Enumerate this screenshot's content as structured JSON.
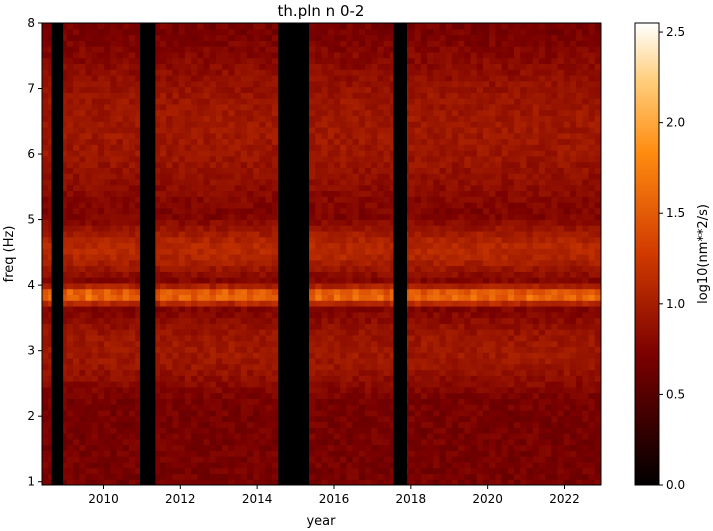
{
  "chart_data": {
    "type": "heatmap",
    "title": "th.pln n 0-2",
    "xlabel": "year",
    "ylabel": "freq (Hz)",
    "colorbar_label": "log10(nm**2/s)",
    "colormap": "gist_heat",
    "xlim": [
      2008.4,
      2022.95
    ],
    "ylim": [
      0.95,
      8.0
    ],
    "x_ticks": [
      2010,
      2012,
      2014,
      2016,
      2018,
      2020,
      2022
    ],
    "y_ticks": [
      1,
      2,
      3,
      4,
      5,
      6,
      7,
      8
    ],
    "clim": [
      0.0,
      2.55
    ],
    "colorbar_ticks": [
      0.0,
      0.5,
      1.0,
      1.5,
      2.0,
      2.5
    ],
    "data_gaps_years": [
      [
        2008.65,
        2008.95
      ],
      [
        2010.95,
        2011.35
      ],
      [
        2014.55,
        2015.35
      ],
      [
        2017.55,
        2017.9
      ]
    ],
    "frequency_bands": [
      {
        "freq_center": 3.85,
        "freq_halfwidth": 0.12,
        "level": 1.5
      },
      {
        "freq_center": 4.55,
        "freq_halfwidth": 0.45,
        "level": 1.1
      },
      {
        "freq_center": 3.0,
        "freq_halfwidth": 0.8,
        "level": 0.95
      },
      {
        "freq_center": 6.4,
        "freq_halfwidth": 1.6,
        "level": 0.95
      },
      {
        "freq_center": 1.6,
        "freq_halfwidth": 0.65,
        "level": 0.65
      }
    ]
  }
}
